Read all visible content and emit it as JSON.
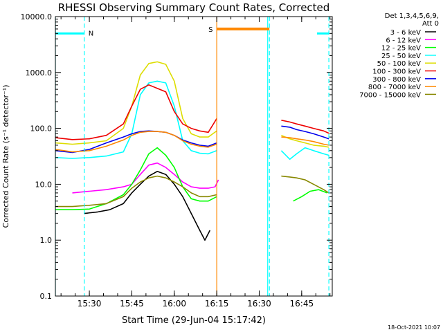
{
  "chart_data": {
    "type": "line",
    "title": "RHESSI Observing Summary Count Rates, Corrected",
    "xlabel": "Start Time (29-Jun-04 15:17:42)",
    "ylabel": "Corrected Count Rate (s⁻¹ detector⁻¹)",
    "yscale": "log",
    "ylim": [
      0.1,
      10000
    ],
    "xlim": [
      15.3,
      16.93
    ],
    "x_ticks": [
      {
        "value": 15.5,
        "label": "15:30"
      },
      {
        "value": 15.75,
        "label": "15:45"
      },
      {
        "value": 16.0,
        "label": "16:00"
      },
      {
        "value": 16.25,
        "label": "16:15"
      },
      {
        "value": 16.5,
        "label": "16:30"
      },
      {
        "value": 16.75,
        "label": "16:45"
      }
    ],
    "y_ticks": [
      {
        "value": 0.1,
        "label": "0.1"
      },
      {
        "value": 1,
        "label": "1.0"
      },
      {
        "value": 10,
        "label": "10.0"
      },
      {
        "value": 100,
        "label": "100.0"
      },
      {
        "value": 1000,
        "label": "1000.0"
      },
      {
        "value": 10000,
        "label": "10000.0"
      }
    ],
    "legend": {
      "placement": "top-right",
      "header": [
        "Det 1,3,4,5,6,9,",
        "Att 0"
      ],
      "entries": [
        {
          "label": "3 - 6 keV",
          "color": "#000000"
        },
        {
          "label": "6 - 12 keV",
          "color": "#ff00ff"
        },
        {
          "label": "12 - 25 keV",
          "color": "#00ff00"
        },
        {
          "label": "25 - 50 keV",
          "color": "#00ffff"
        },
        {
          "label": "50 - 100 keV",
          "color": "#dddd00"
        },
        {
          "label": "100 - 300 keV",
          "color": "#ee0000"
        },
        {
          "label": "300 - 800 keV",
          "color": "#0000ee"
        },
        {
          "label": "800 - 7000 keV",
          "color": "#ff8800"
        },
        {
          "label": "7000 - 15000 keV",
          "color": "#888800"
        }
      ]
    },
    "night_segments": [
      {
        "x1": 15.3,
        "x2": 15.47,
        "y": 5000,
        "label": "",
        "color": "#00ffff"
      },
      {
        "x1": 15.47,
        "x2": 15.47,
        "y": 5000,
        "label": "N",
        "color": "#00ffff"
      },
      {
        "x1": 16.84,
        "x2": 16.91,
        "y": 5000,
        "label": "",
        "color": "#00ffff"
      }
    ],
    "saa_segment": {
      "x1": 16.25,
      "x2": 16.56,
      "y": 6000,
      "label": "S",
      "color": "#ff8800"
    },
    "vlines": [
      {
        "x": 15.3,
        "color": "#00ffff",
        "style": "solid"
      },
      {
        "x": 15.47,
        "color": "#00ffff",
        "style": "dashed"
      },
      {
        "x": 16.25,
        "color": "#ff8800",
        "style": "solid"
      },
      {
        "x": 16.55,
        "color": "#00ffff",
        "style": "solid"
      },
      {
        "x": 16.56,
        "color": "#00ffff",
        "style": "dashed"
      },
      {
        "x": 16.91,
        "color": "#00ffff",
        "style": "dashed"
      }
    ],
    "series": [
      {
        "name": "3 - 6 keV",
        "color": "#000000",
        "segments": [
          {
            "x": [
              15.47,
              15.55,
              15.62,
              15.7,
              15.75,
              15.8,
              15.85,
              15.9,
              15.95,
              16.0,
              16.05,
              16.1,
              16.15,
              16.18,
              16.21
            ],
            "y": [
              3,
              3.2,
              3.5,
              4.5,
              7,
              10,
              14,
              17,
              15,
              10,
              6,
              3,
              1.5,
              1,
              1.5
            ]
          }
        ]
      },
      {
        "name": "6 - 12 keV",
        "color": "#ff00ff",
        "segments": [
          {
            "x": [
              15.4,
              15.5,
              15.6,
              15.7,
              15.75,
              15.8,
              15.85,
              15.9,
              15.95,
              16.0,
              16.05,
              16.1,
              16.15,
              16.2,
              16.24,
              16.26
            ],
            "y": [
              7,
              7.5,
              8,
              9,
              10,
              15,
              22,
              24,
              20,
              15,
              11,
              9,
              8.5,
              8.5,
              9,
              12
            ]
          }
        ]
      },
      {
        "name": "12 - 25 keV",
        "color": "#00ff00",
        "segments": [
          {
            "x": [
              15.3,
              15.4,
              15.5,
              15.6,
              15.7,
              15.75,
              15.8,
              15.85,
              15.9,
              15.95,
              16.0,
              16.05,
              16.1,
              16.15,
              16.2,
              16.25
            ],
            "y": [
              3.5,
              3.5,
              3.6,
              4.5,
              6.5,
              10,
              18,
              35,
              45,
              33,
              20,
              9,
              5.5,
              5,
              5,
              6
            ]
          },
          {
            "x": [
              16.7,
              16.75,
              16.8,
              16.85,
              16.9
            ],
            "y": [
              5,
              6,
              7.5,
              8,
              7
            ]
          }
        ]
      },
      {
        "name": "25 - 50 keV",
        "color": "#00ffff",
        "segments": [
          {
            "x": [
              15.3,
              15.4,
              15.5,
              15.6,
              15.7,
              15.75,
              15.8,
              15.85,
              15.9,
              15.95,
              16.0,
              16.05,
              16.1,
              16.15,
              16.2,
              16.25
            ],
            "y": [
              30,
              29,
              30,
              32,
              38,
              80,
              400,
              650,
              700,
              650,
              250,
              60,
              40,
              36,
              35,
              40
            ]
          },
          {
            "x": [
              16.63,
              16.68,
              16.72,
              16.77,
              16.82,
              16.88,
              16.91
            ],
            "y": [
              40,
              28,
              35,
              45,
              40,
              35,
              33
            ]
          }
        ]
      },
      {
        "name": "50 - 100 keV",
        "color": "#dddd00",
        "segments": [
          {
            "x": [
              15.3,
              15.4,
              15.5,
              15.6,
              15.7,
              15.75,
              15.8,
              15.85,
              15.9,
              15.95,
              16.0,
              16.05,
              16.1,
              16.15,
              16.2,
              16.25
            ],
            "y": [
              55,
              52,
              55,
              60,
              100,
              250,
              900,
              1450,
              1550,
              1400,
              700,
              150,
              80,
              70,
              70,
              90
            ]
          },
          {
            "x": [
              16.63,
              16.68,
              16.72,
              16.77,
              16.82,
              16.88,
              16.91
            ],
            "y": [
              75,
              65,
              60,
              55,
              50,
              48,
              46
            ]
          }
        ]
      },
      {
        "name": "100 - 300 keV",
        "color": "#ee0000",
        "segments": [
          {
            "x": [
              15.3,
              15.4,
              15.5,
              15.6,
              15.7,
              15.75,
              15.8,
              15.85,
              15.9,
              15.95,
              16.0,
              16.05,
              16.1,
              16.15,
              16.2,
              16.25
            ],
            "y": [
              68,
              63,
              65,
              75,
              120,
              250,
              500,
              600,
              520,
              450,
              200,
              120,
              100,
              90,
              85,
              150
            ]
          },
          {
            "x": [
              16.63,
              16.68,
              16.72,
              16.77,
              16.82,
              16.88,
              16.91
            ],
            "y": [
              140,
              130,
              120,
              110,
              100,
              90,
              82
            ]
          }
        ]
      },
      {
        "name": "300 - 800 keV",
        "color": "#0000ee",
        "segments": [
          {
            "x": [
              15.3,
              15.4,
              15.5,
              15.6,
              15.7,
              15.75,
              15.8,
              15.85,
              15.9,
              15.95,
              16.0,
              16.05,
              16.1,
              16.15,
              16.2,
              16.25
            ],
            "y": [
              40,
              37,
              42,
              55,
              70,
              80,
              88,
              90,
              88,
              85,
              75,
              62,
              55,
              50,
              48,
              55
            ]
          },
          {
            "x": [
              16.63,
              16.68,
              16.72,
              16.77,
              16.82,
              16.88,
              16.91
            ],
            "y": [
              110,
              105,
              95,
              88,
              80,
              70,
              65
            ]
          }
        ]
      },
      {
        "name": "800 - 7000 keV",
        "color": "#ff8800",
        "segments": [
          {
            "x": [
              15.3,
              15.4,
              15.5,
              15.6,
              15.7,
              15.75,
              15.8,
              15.85,
              15.9,
              15.95,
              16.0,
              16.05,
              16.1,
              16.15,
              16.2,
              16.25
            ],
            "y": [
              42,
              38,
              40,
              48,
              62,
              75,
              85,
              88,
              88,
              85,
              75,
              60,
              52,
              48,
              46,
              52
            ]
          },
          {
            "x": [
              16.63,
              16.68,
              16.72,
              16.77,
              16.82,
              16.88,
              16.91
            ],
            "y": [
              70,
              68,
              65,
              62,
              58,
              52,
              50
            ]
          }
        ]
      },
      {
        "name": "7000 - 15000 keV",
        "color": "#888800",
        "segments": [
          {
            "x": [
              15.3,
              15.4,
              15.5,
              15.6,
              15.7,
              15.75,
              15.8,
              15.85,
              15.9,
              15.95,
              16.0,
              16.05,
              16.1,
              16.15,
              16.2,
              16.25
            ],
            "y": [
              4,
              4,
              4.2,
              4.5,
              6,
              8.5,
              11,
              13,
              14,
              13,
              11,
              9,
              7,
              6,
              6,
              6.5
            ]
          },
          {
            "x": [
              16.63,
              16.68,
              16.72,
              16.77,
              16.82,
              16.88,
              16.91
            ],
            "y": [
              14,
              13.5,
              13,
              12,
              10,
              8,
              7
            ]
          }
        ]
      }
    ]
  },
  "footer": {
    "date_stamp": "18-Oct-2021 10:07"
  }
}
